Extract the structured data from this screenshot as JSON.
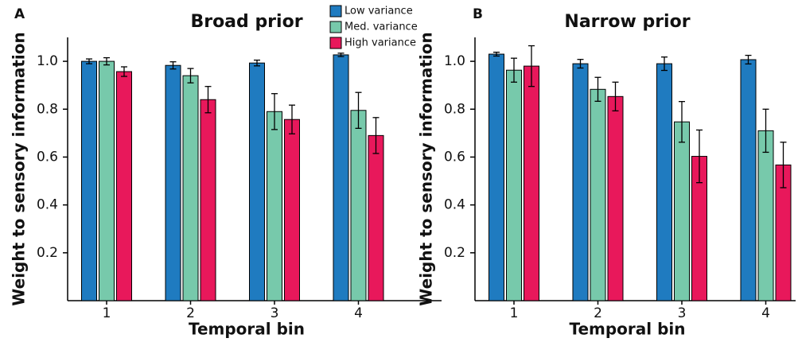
{
  "chart_data": [
    {
      "type": "bar",
      "panel": "A",
      "title": "Broad prior",
      "xlabel": "Temporal bin",
      "ylabel": "Weight to sensory information",
      "categories": [
        "1",
        "2",
        "3",
        "4"
      ],
      "ylim": [
        0,
        1.1
      ],
      "yticks": [
        0.2,
        0.4,
        0.6,
        0.8,
        {
          "value": 1,
          "label": "1.0"
        }
      ],
      "series": [
        {
          "name": "Low variance",
          "color": "#1f7bc0",
          "values": [
            1.0,
            0.983,
            0.993,
            1.027
          ],
          "errors": [
            0.01,
            0.015,
            0.012,
            0.007
          ]
        },
        {
          "name": "Med. variance",
          "color": "#77c9ab",
          "values": [
            1.0,
            0.94,
            0.79,
            0.795
          ],
          "errors": [
            0.015,
            0.03,
            0.075,
            0.075
          ]
        },
        {
          "name": "High variance",
          "color": "#e8185b",
          "values": [
            0.957,
            0.84,
            0.757,
            0.69
          ],
          "errors": [
            0.02,
            0.055,
            0.06,
            0.075
          ]
        }
      ]
    },
    {
      "type": "bar",
      "panel": "B",
      "title": "Narrow prior",
      "xlabel": "Temporal bin",
      "ylabel": "Weight to sensory information",
      "categories": [
        "1",
        "2",
        "3",
        "4"
      ],
      "ylim": [
        0,
        1.1
      ],
      "yticks": [
        0.2,
        0.4,
        0.6,
        0.8,
        {
          "value": 1,
          "label": "1.0"
        }
      ],
      "series": [
        {
          "color": "#1f7bc0",
          "values": [
            1.03,
            0.99,
            0.99,
            1.007
          ],
          "errors": [
            0.008,
            0.018,
            0.028,
            0.018
          ]
        },
        {
          "color": "#77c9ab",
          "values": [
            0.963,
            0.883,
            0.747,
            0.71
          ],
          "errors": [
            0.05,
            0.05,
            0.085,
            0.09
          ]
        },
        {
          "color": "#e8185b",
          "values": [
            0.98,
            0.853,
            0.603,
            0.567
          ],
          "errors": [
            0.085,
            0.06,
            0.11,
            0.095
          ]
        }
      ]
    }
  ]
}
